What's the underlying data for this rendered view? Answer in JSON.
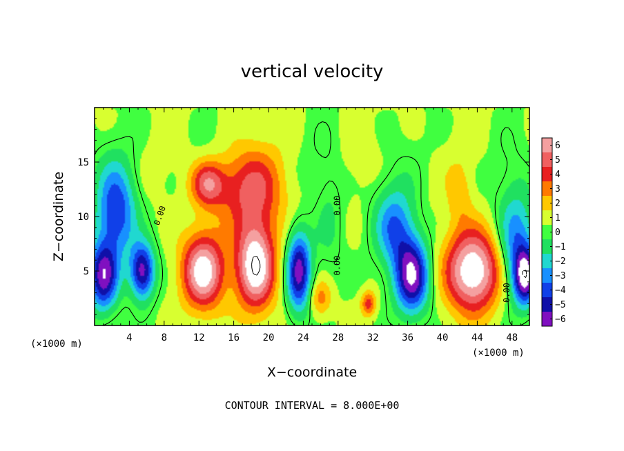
{
  "chart_data": {
    "type": "heatmap",
    "title": "vertical velocity",
    "xlabel": "X−coordinate",
    "ylabel": "Z−coordinate",
    "x_unit_left": "(×1000 m)",
    "x_unit_right": "(×1000 m)",
    "xlim": [
      0,
      50
    ],
    "ylim": [
      0,
      20
    ],
    "xticks": [
      4,
      8,
      12,
      16,
      20,
      24,
      28,
      32,
      36,
      40,
      44,
      48
    ],
    "yticks": [
      5,
      10,
      15
    ],
    "colorbar": {
      "levels": [
        6,
        5,
        4,
        3,
        2,
        1,
        0,
        -1,
        -2,
        -3,
        -4,
        -5,
        -6
      ],
      "labels": [
        "6",
        "5",
        "4",
        "3",
        "2",
        "1",
        "0",
        "−1",
        "−2",
        "−3",
        "−4",
        "−5",
        "−6"
      ],
      "colors": [
        "#f4a0a0",
        "#f06060",
        "#e82020",
        "#ff7a00",
        "#ffc800",
        "#d8ff30",
        "#40ff40",
        "#20e060",
        "#20d8d0",
        "#1890ff",
        "#1040e8",
        "#1010a8",
        "#8010c0"
      ]
    },
    "features": [
      {
        "sign": "down",
        "x": 2.5,
        "z": 10.5,
        "sx": 1.6,
        "sz": 3.0,
        "w": -5.0
      },
      {
        "sign": "down",
        "x": 5.5,
        "z": 5.0,
        "sx": 1.0,
        "sz": 1.8,
        "w": -6.5
      },
      {
        "sign": "down",
        "x": 1.0,
        "z": 4.5,
        "sx": 1.2,
        "sz": 2.2,
        "w": -6.5
      },
      {
        "sign": "up",
        "x": 12.5,
        "z": 5.0,
        "sx": 1.7,
        "sz": 2.4,
        "w": 7.0
      },
      {
        "sign": "up",
        "x": 13.0,
        "z": 13.0,
        "sx": 1.4,
        "sz": 1.5,
        "w": 4.5
      },
      {
        "sign": "up",
        "x": 18.5,
        "z": 5.5,
        "sx": 1.6,
        "sz": 2.8,
        "w": 7.5
      },
      {
        "sign": "up",
        "x": 18.0,
        "z": 12.5,
        "sx": 2.8,
        "sz": 2.6,
        "w": 4.0
      },
      {
        "sign": "down",
        "x": 23.5,
        "z": 5.0,
        "sx": 1.0,
        "sz": 2.6,
        "w": -6.5
      },
      {
        "sign": "up",
        "x": 26.0,
        "z": 2.5,
        "sx": 0.9,
        "sz": 1.2,
        "w": 2.5
      },
      {
        "sign": "up",
        "x": 31.5,
        "z": 2.0,
        "sx": 0.6,
        "sz": 0.8,
        "w": 3.5
      },
      {
        "sign": "down",
        "x": 34.5,
        "z": 9.0,
        "sx": 1.6,
        "sz": 2.6,
        "w": -4.0
      },
      {
        "sign": "down",
        "x": 36.5,
        "z": 4.5,
        "sx": 1.4,
        "sz": 2.4,
        "w": -7.0
      },
      {
        "sign": "up",
        "x": 43.5,
        "z": 5.0,
        "sx": 2.2,
        "sz": 2.6,
        "w": 7.5
      },
      {
        "sign": "up",
        "x": 42.0,
        "z": 12.0,
        "sx": 1.0,
        "sz": 2.0,
        "w": 1.5
      },
      {
        "sign": "down",
        "x": 48.5,
        "z": 7.5,
        "sx": 1.5,
        "sz": 3.5,
        "w": -4.0
      },
      {
        "sign": "down",
        "x": 49.5,
        "z": 4.5,
        "sx": 0.9,
        "sz": 1.8,
        "w": -6.5
      },
      {
        "sign": "down",
        "x": 27.0,
        "z": 10.0,
        "sx": 1.2,
        "sz": 4.0,
        "w": -1.2
      }
    ],
    "contour_labels": [
      {
        "text": "0.00",
        "x": 7.8,
        "z": 10.0,
        "angle": -70
      },
      {
        "text": "0.00",
        "x": 28.2,
        "z": 11.0,
        "angle": -90
      },
      {
        "text": "0.00",
        "x": 28.2,
        "z": 5.5,
        "angle": -90
      },
      {
        "text": "0.00",
        "x": 47.7,
        "z": 3.0,
        "angle": -90
      }
    ]
  },
  "footer": {
    "contour_interval": "CONTOUR INTERVAL = 8.000E+00"
  }
}
